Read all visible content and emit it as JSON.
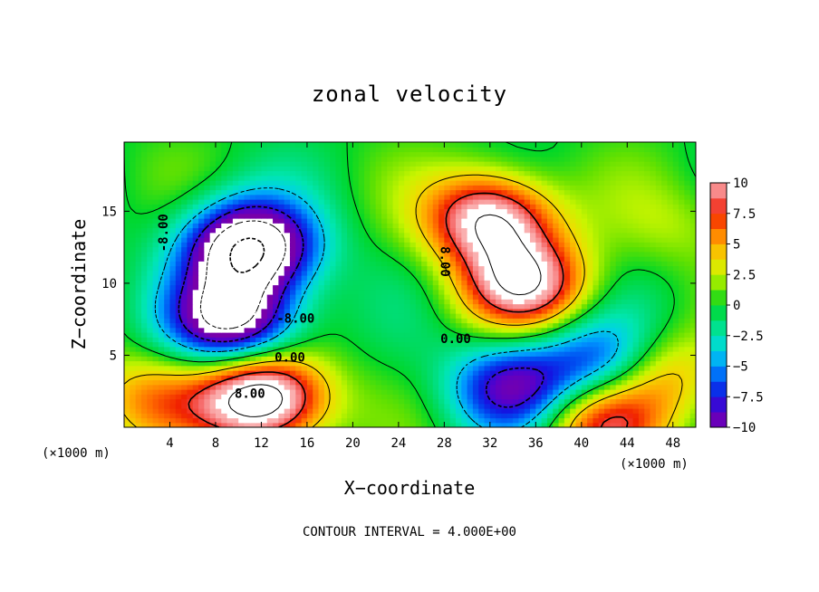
{
  "chart_data": {
    "type": "heatmap",
    "title": "zonal velocity",
    "xlabel": "X−coordinate",
    "ylabel": "Z−coordinate",
    "x_unit": "(×1000 m)",
    "y_unit": "(×1000 m)",
    "xlim": [
      0,
      50
    ],
    "ylim": [
      0,
      19.8
    ],
    "x_ticks": [
      "4",
      "8",
      "12",
      "16",
      "20",
      "24",
      "28",
      "32",
      "36",
      "40",
      "44",
      "48"
    ],
    "y_ticks": [
      "5",
      "10",
      "15"
    ],
    "colorbar": {
      "min": -10,
      "max": 10,
      "tick_labels": [
        "10",
        "7.5",
        "5",
        "2.5",
        "0",
        "−2.5",
        "−5",
        "−7.5",
        "−10"
      ]
    },
    "contour_labels": [
      "-8.00",
      "-8.00",
      "8.00",
      "0.00",
      "8.00",
      "0.00"
    ],
    "contour_interval_text": "CONTOUR INTERVAL = 4.000E+00",
    "field_features": [
      {
        "x": 11,
        "z": 12.5,
        "value": -16
      },
      {
        "x": 9.5,
        "z": 7.5,
        "value": -13
      },
      {
        "x": 12,
        "z": 2.0,
        "value": 15
      },
      {
        "x": 32,
        "z": 14.5,
        "value": 12
      },
      {
        "x": 35,
        "z": 10.0,
        "value": 11
      },
      {
        "x": 34,
        "z": 2.8,
        "value": -9
      },
      {
        "x": 42,
        "z": 4.5,
        "value": -8
      },
      {
        "x": 41.5,
        "z": 0.4,
        "value": 8
      },
      {
        "x": 46.5,
        "z": 3.8,
        "value": 6
      },
      {
        "x": 2.0,
        "z": 2.0,
        "value": 5
      },
      {
        "x": 48.5,
        "z": 14.0,
        "value": 2
      }
    ]
  }
}
